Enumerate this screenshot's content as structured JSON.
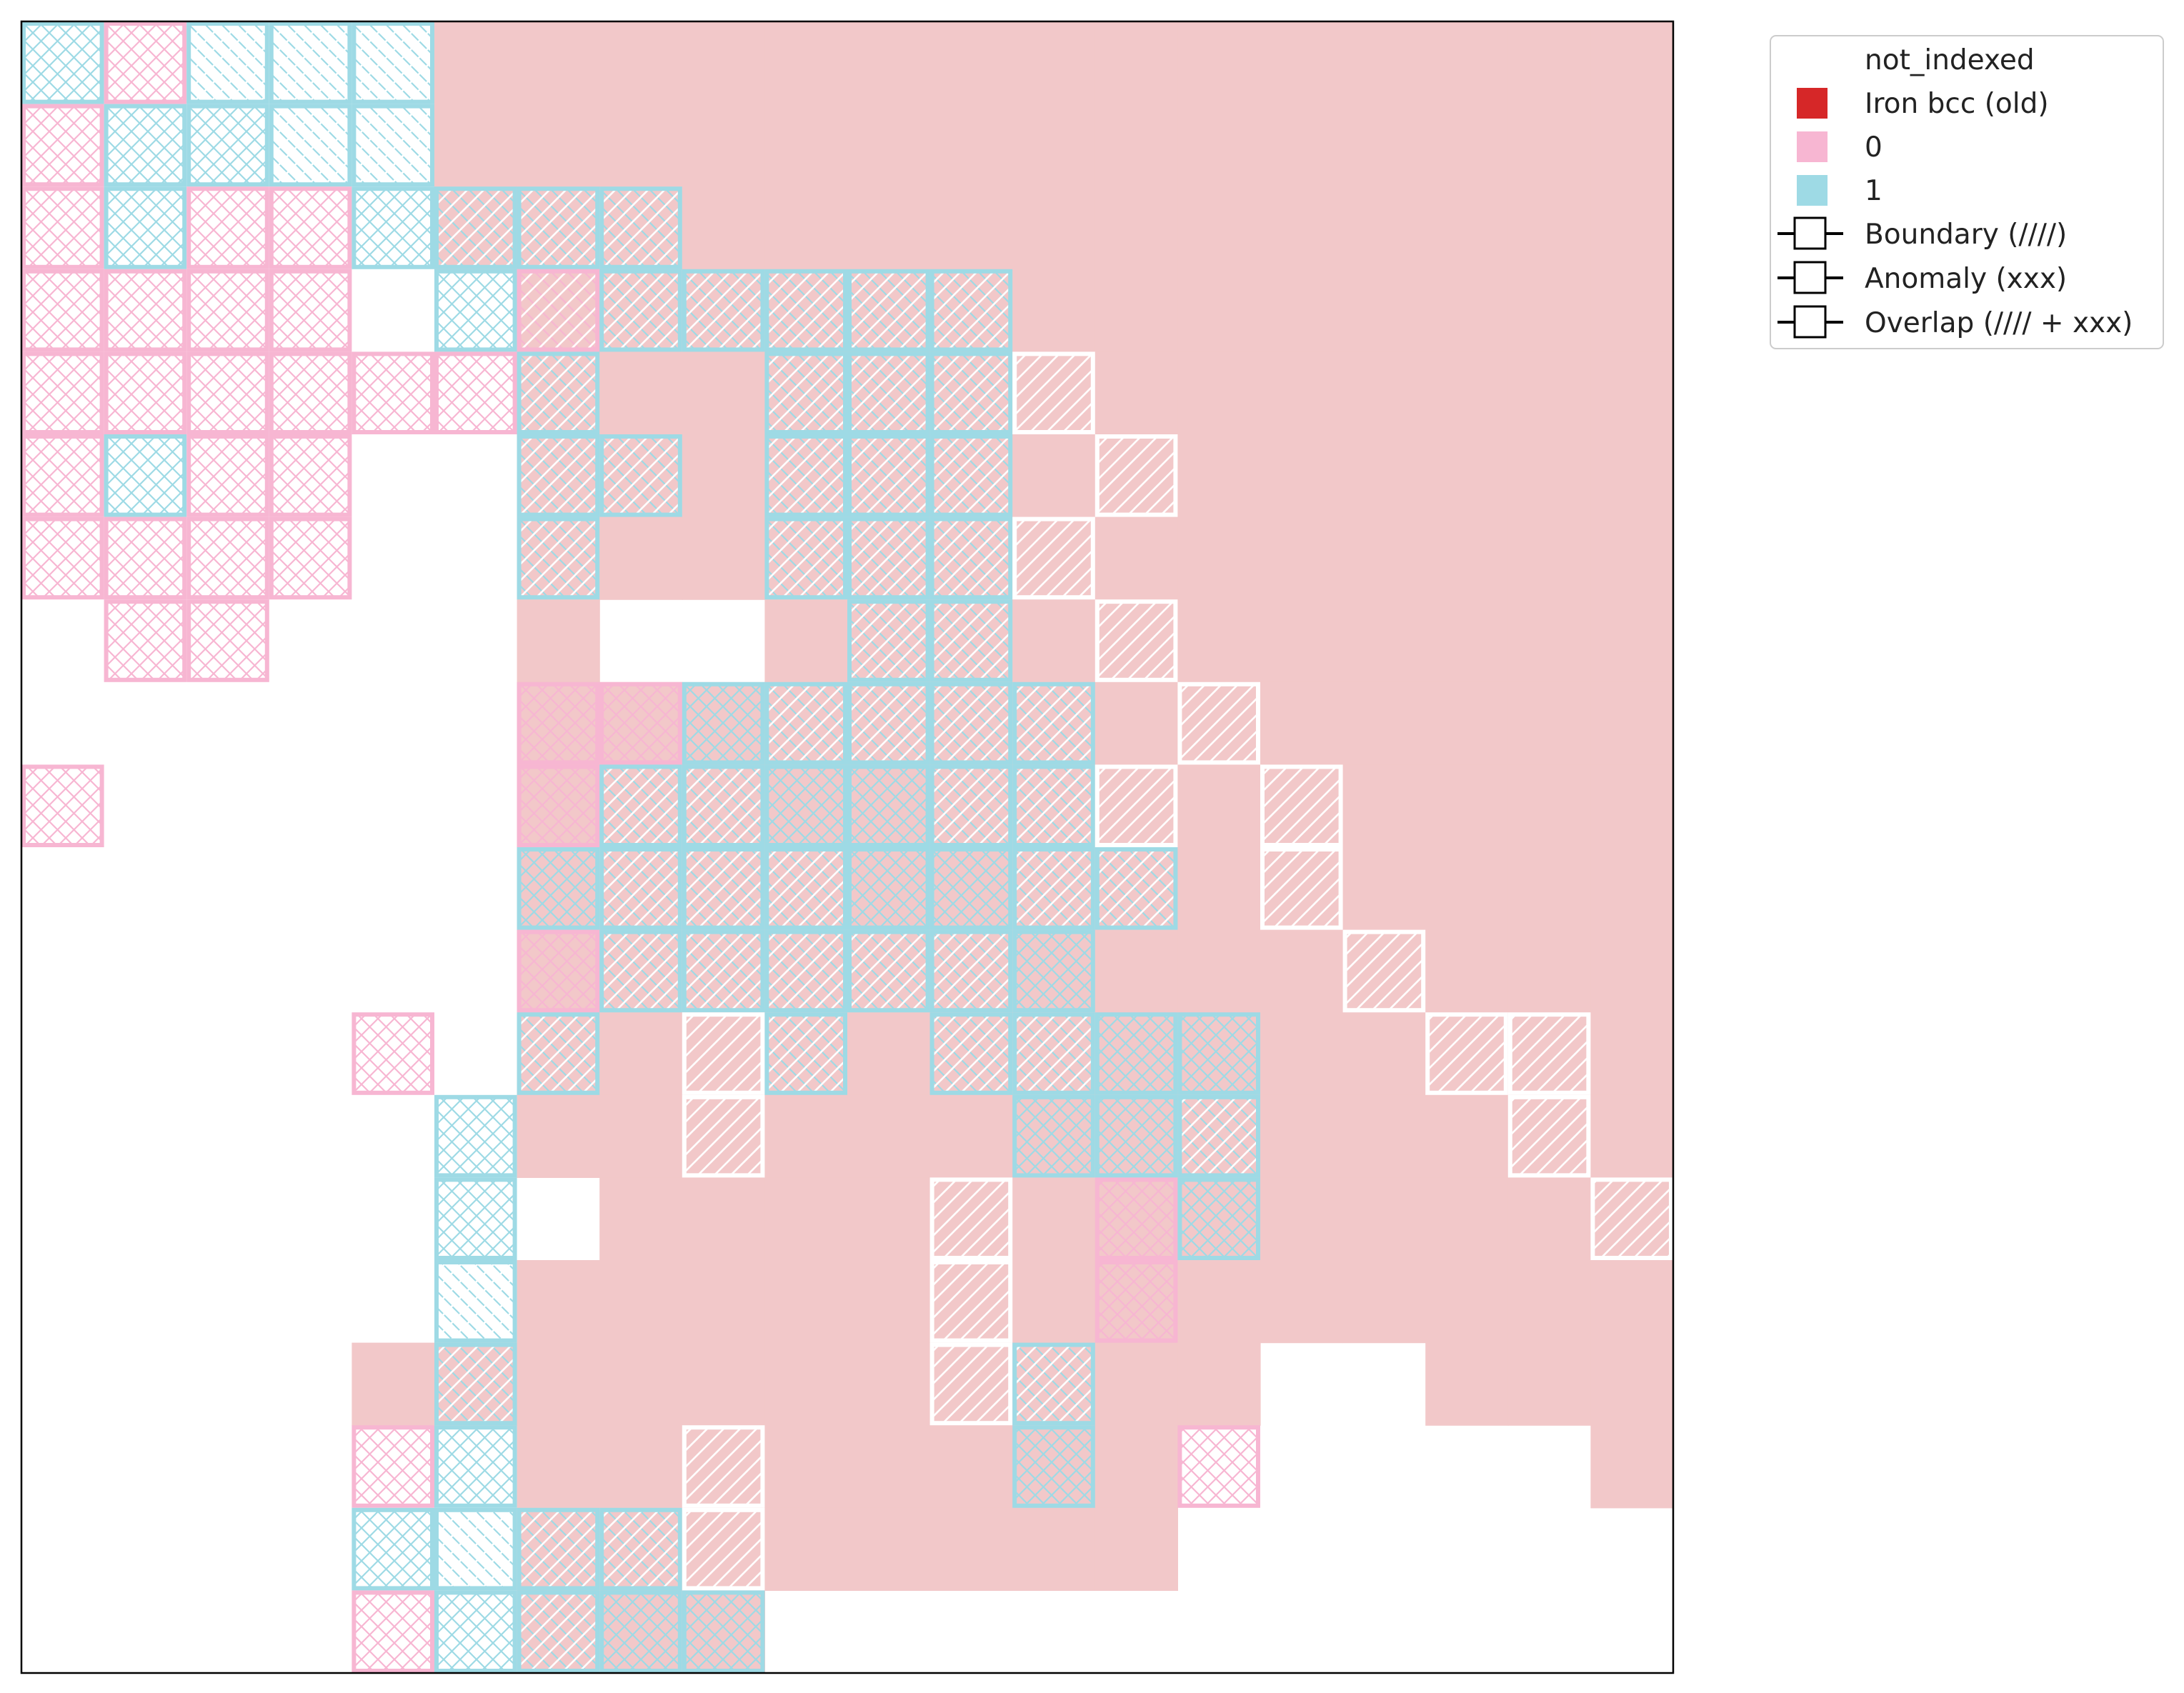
{
  "chart_data": {
    "type": "heatmap",
    "title": "",
    "xlabel": "",
    "ylabel": "",
    "grid_size": [
      20,
      20
    ],
    "axes_ticks": false,
    "colors": {
      "not_indexed": "#ffffff",
      "iron": "#f2c8c9",
      "iron_legend": "#d62728",
      "phase0": "#f7b6d2",
      "phase1": "#9edae5",
      "boundary_hatch": "#ffffff",
      "axis": "#000000"
    },
    "legend": {
      "placement": "outside-top-right",
      "entries": [
        {
          "label": "not_indexed",
          "kind": "patch",
          "color_key": "not_indexed"
        },
        {
          "label": "Iron bcc (old)",
          "kind": "patch",
          "color_key": "iron_legend"
        },
        {
          "label": "0",
          "kind": "patch",
          "color_key": "phase0"
        },
        {
          "label": "1",
          "kind": "patch",
          "color_key": "phase1"
        },
        {
          "label": "Boundary (////)",
          "kind": "marker"
        },
        {
          "label": "Anomaly (xxx)",
          "kind": "marker"
        },
        {
          "label": "Overlap (//// + xxx)",
          "kind": "marker"
        }
      ]
    },
    "iron_rows": [
      "00000111111111111111",
      "00000111111111111111",
      "00000111111111111111",
      "00000011111111111111",
      "00000011111111111111",
      "00000011111111111111",
      "00000011111111111111",
      "00000010011111111111",
      "00000011111111111111",
      "00000011111111111111",
      "00000011111111111111",
      "00000011111111111111",
      "00000011111111111111",
      "00000011111111111111",
      "00000001111111111111",
      "00000011111111111111",
      "00001111111111100111",
      "00000011111111000001",
      "00000011111111000000",
      "00000011100000000000"
    ],
    "cells": [
      {
        "r": 0,
        "c": 0,
        "p": "1",
        "m": "x"
      },
      {
        "r": 0,
        "c": 1,
        "p": "0",
        "m": "x"
      },
      {
        "r": 0,
        "c": 2,
        "p": "1",
        "m": "o"
      },
      {
        "r": 0,
        "c": 3,
        "p": "1",
        "m": "o"
      },
      {
        "r": 0,
        "c": 4,
        "p": "1",
        "m": "o"
      },
      {
        "r": 1,
        "c": 0,
        "p": "0",
        "m": "x"
      },
      {
        "r": 1,
        "c": 1,
        "p": "1",
        "m": "x"
      },
      {
        "r": 1,
        "c": 2,
        "p": "1",
        "m": "x"
      },
      {
        "r": 1,
        "c": 3,
        "p": "1",
        "m": "o"
      },
      {
        "r": 1,
        "c": 4,
        "p": "1",
        "m": "o"
      },
      {
        "r": 2,
        "c": 0,
        "p": "0",
        "m": "x"
      },
      {
        "r": 2,
        "c": 1,
        "p": "1",
        "m": "x"
      },
      {
        "r": 2,
        "c": 2,
        "p": "0",
        "m": "x"
      },
      {
        "r": 2,
        "c": 3,
        "p": "0",
        "m": "x"
      },
      {
        "r": 2,
        "c": 4,
        "p": "1",
        "m": "x"
      },
      {
        "r": 2,
        "c": 5,
        "p": "1",
        "m": "o"
      },
      {
        "r": 2,
        "c": 6,
        "p": "1",
        "m": "o"
      },
      {
        "r": 2,
        "c": 7,
        "p": "1",
        "m": "o"
      },
      {
        "r": 3,
        "c": 0,
        "p": "0",
        "m": "x"
      },
      {
        "r": 3,
        "c": 1,
        "p": "0",
        "m": "x"
      },
      {
        "r": 3,
        "c": 2,
        "p": "0",
        "m": "x"
      },
      {
        "r": 3,
        "c": 3,
        "p": "0",
        "m": "x"
      },
      {
        "r": 3,
        "c": 5,
        "p": "1",
        "m": "x"
      },
      {
        "r": 3,
        "c": 6,
        "p": "0",
        "m": "o"
      },
      {
        "r": 3,
        "c": 7,
        "p": "1",
        "m": "o"
      },
      {
        "r": 3,
        "c": 8,
        "p": "1",
        "m": "o"
      },
      {
        "r": 3,
        "c": 9,
        "p": "1",
        "m": "o"
      },
      {
        "r": 3,
        "c": 10,
        "p": "1",
        "m": "o"
      },
      {
        "r": 3,
        "c": 11,
        "p": "1",
        "m": "o"
      },
      {
        "r": 4,
        "c": 0,
        "p": "0",
        "m": "x"
      },
      {
        "r": 4,
        "c": 1,
        "p": "0",
        "m": "x"
      },
      {
        "r": 4,
        "c": 2,
        "p": "0",
        "m": "x"
      },
      {
        "r": 4,
        "c": 3,
        "p": "0",
        "m": "x"
      },
      {
        "r": 4,
        "c": 4,
        "p": "0",
        "m": "x"
      },
      {
        "r": 4,
        "c": 5,
        "p": "0",
        "m": "x"
      },
      {
        "r": 4,
        "c": 6,
        "p": "1",
        "m": "o"
      },
      {
        "r": 4,
        "c": 9,
        "p": "1",
        "m": "o"
      },
      {
        "r": 4,
        "c": 10,
        "p": "1",
        "m": "o"
      },
      {
        "r": 4,
        "c": 11,
        "p": "1",
        "m": "o"
      },
      {
        "r": 4,
        "c": 12,
        "p": "b",
        "m": "b"
      },
      {
        "r": 5,
        "c": 0,
        "p": "0",
        "m": "x"
      },
      {
        "r": 5,
        "c": 1,
        "p": "1",
        "m": "x"
      },
      {
        "r": 5,
        "c": 2,
        "p": "0",
        "m": "x"
      },
      {
        "r": 5,
        "c": 3,
        "p": "0",
        "m": "x"
      },
      {
        "r": 5,
        "c": 6,
        "p": "1",
        "m": "o"
      },
      {
        "r": 5,
        "c": 7,
        "p": "1",
        "m": "o"
      },
      {
        "r": 5,
        "c": 9,
        "p": "1",
        "m": "o"
      },
      {
        "r": 5,
        "c": 10,
        "p": "1",
        "m": "o"
      },
      {
        "r": 5,
        "c": 11,
        "p": "1",
        "m": "o"
      },
      {
        "r": 5,
        "c": 13,
        "p": "b",
        "m": "b"
      },
      {
        "r": 6,
        "c": 0,
        "p": "0",
        "m": "x"
      },
      {
        "r": 6,
        "c": 1,
        "p": "0",
        "m": "x"
      },
      {
        "r": 6,
        "c": 2,
        "p": "0",
        "m": "x"
      },
      {
        "r": 6,
        "c": 3,
        "p": "0",
        "m": "x"
      },
      {
        "r": 6,
        "c": 6,
        "p": "1",
        "m": "o"
      },
      {
        "r": 6,
        "c": 9,
        "p": "1",
        "m": "o"
      },
      {
        "r": 6,
        "c": 10,
        "p": "1",
        "m": "o"
      },
      {
        "r": 6,
        "c": 11,
        "p": "1",
        "m": "o"
      },
      {
        "r": 6,
        "c": 12,
        "p": "b",
        "m": "b"
      },
      {
        "r": 7,
        "c": 1,
        "p": "0",
        "m": "x"
      },
      {
        "r": 7,
        "c": 2,
        "p": "0",
        "m": "x"
      },
      {
        "r": 7,
        "c": 10,
        "p": "1",
        "m": "o"
      },
      {
        "r": 7,
        "c": 11,
        "p": "1",
        "m": "o"
      },
      {
        "r": 7,
        "c": 13,
        "p": "b",
        "m": "b"
      },
      {
        "r": 8,
        "c": 6,
        "p": "0",
        "m": "x"
      },
      {
        "r": 8,
        "c": 7,
        "p": "0",
        "m": "x"
      },
      {
        "r": 8,
        "c": 8,
        "p": "1",
        "m": "x"
      },
      {
        "r": 8,
        "c": 9,
        "p": "1",
        "m": "o"
      },
      {
        "r": 8,
        "c": 10,
        "p": "1",
        "m": "o"
      },
      {
        "r": 8,
        "c": 11,
        "p": "1",
        "m": "o"
      },
      {
        "r": 8,
        "c": 12,
        "p": "1",
        "m": "o"
      },
      {
        "r": 8,
        "c": 14,
        "p": "b",
        "m": "b"
      },
      {
        "r": 9,
        "c": 0,
        "p": "0",
        "m": "x"
      },
      {
        "r": 9,
        "c": 6,
        "p": "0",
        "m": "x"
      },
      {
        "r": 9,
        "c": 7,
        "p": "1",
        "m": "o"
      },
      {
        "r": 9,
        "c": 8,
        "p": "1",
        "m": "o"
      },
      {
        "r": 9,
        "c": 9,
        "p": "1",
        "m": "x"
      },
      {
        "r": 9,
        "c": 10,
        "p": "1",
        "m": "x"
      },
      {
        "r": 9,
        "c": 11,
        "p": "1",
        "m": "o"
      },
      {
        "r": 9,
        "c": 12,
        "p": "1",
        "m": "o"
      },
      {
        "r": 9,
        "c": 13,
        "p": "b",
        "m": "b"
      },
      {
        "r": 9,
        "c": 15,
        "p": "b",
        "m": "b"
      },
      {
        "r": 10,
        "c": 6,
        "p": "1",
        "m": "x"
      },
      {
        "r": 10,
        "c": 7,
        "p": "1",
        "m": "o"
      },
      {
        "r": 10,
        "c": 8,
        "p": "1",
        "m": "o"
      },
      {
        "r": 10,
        "c": 9,
        "p": "1",
        "m": "o"
      },
      {
        "r": 10,
        "c": 10,
        "p": "1",
        "m": "x"
      },
      {
        "r": 10,
        "c": 11,
        "p": "1",
        "m": "x"
      },
      {
        "r": 10,
        "c": 12,
        "p": "1",
        "m": "o"
      },
      {
        "r": 10,
        "c": 13,
        "p": "1",
        "m": "o"
      },
      {
        "r": 10,
        "c": 15,
        "p": "b",
        "m": "b"
      },
      {
        "r": 11,
        "c": 6,
        "p": "0",
        "m": "x"
      },
      {
        "r": 11,
        "c": 7,
        "p": "1",
        "m": "o"
      },
      {
        "r": 11,
        "c": 8,
        "p": "1",
        "m": "o"
      },
      {
        "r": 11,
        "c": 9,
        "p": "1",
        "m": "o"
      },
      {
        "r": 11,
        "c": 10,
        "p": "1",
        "m": "o"
      },
      {
        "r": 11,
        "c": 11,
        "p": "1",
        "m": "o"
      },
      {
        "r": 11,
        "c": 12,
        "p": "1",
        "m": "x"
      },
      {
        "r": 11,
        "c": 16,
        "p": "b",
        "m": "b"
      },
      {
        "r": 12,
        "c": 4,
        "p": "0",
        "m": "x"
      },
      {
        "r": 12,
        "c": 6,
        "p": "1",
        "m": "o"
      },
      {
        "r": 12,
        "c": 8,
        "p": "b",
        "m": "b"
      },
      {
        "r": 12,
        "c": 9,
        "p": "1",
        "m": "o"
      },
      {
        "r": 12,
        "c": 11,
        "p": "1",
        "m": "o"
      },
      {
        "r": 12,
        "c": 12,
        "p": "1",
        "m": "o"
      },
      {
        "r": 12,
        "c": 13,
        "p": "1",
        "m": "x"
      },
      {
        "r": 12,
        "c": 14,
        "p": "1",
        "m": "x"
      },
      {
        "r": 12,
        "c": 17,
        "p": "b",
        "m": "b"
      },
      {
        "r": 12,
        "c": 18,
        "p": "b",
        "m": "b"
      },
      {
        "r": 13,
        "c": 5,
        "p": "1",
        "m": "x"
      },
      {
        "r": 13,
        "c": 8,
        "p": "b",
        "m": "b"
      },
      {
        "r": 13,
        "c": 12,
        "p": "1",
        "m": "x"
      },
      {
        "r": 13,
        "c": 13,
        "p": "1",
        "m": "x"
      },
      {
        "r": 13,
        "c": 14,
        "p": "1",
        "m": "o"
      },
      {
        "r": 13,
        "c": 18,
        "p": "b",
        "m": "b"
      },
      {
        "r": 14,
        "c": 5,
        "p": "1",
        "m": "x"
      },
      {
        "r": 14,
        "c": 11,
        "p": "b",
        "m": "b"
      },
      {
        "r": 14,
        "c": 13,
        "p": "0",
        "m": "x"
      },
      {
        "r": 14,
        "c": 14,
        "p": "1",
        "m": "x"
      },
      {
        "r": 14,
        "c": 19,
        "p": "b",
        "m": "b"
      },
      {
        "r": 15,
        "c": 5,
        "p": "1",
        "m": "o"
      },
      {
        "r": 15,
        "c": 11,
        "p": "b",
        "m": "b"
      },
      {
        "r": 15,
        "c": 13,
        "p": "0",
        "m": "x"
      },
      {
        "r": 16,
        "c": 5,
        "p": "1",
        "m": "o"
      },
      {
        "r": 16,
        "c": 11,
        "p": "b",
        "m": "b"
      },
      {
        "r": 16,
        "c": 12,
        "p": "1",
        "m": "o"
      },
      {
        "r": 17,
        "c": 4,
        "p": "0",
        "m": "x"
      },
      {
        "r": 17,
        "c": 5,
        "p": "1",
        "m": "x"
      },
      {
        "r": 17,
        "c": 8,
        "p": "b",
        "m": "b"
      },
      {
        "r": 17,
        "c": 12,
        "p": "1",
        "m": "x"
      },
      {
        "r": 17,
        "c": 14,
        "p": "0",
        "m": "x"
      },
      {
        "r": 18,
        "c": 4,
        "p": "1",
        "m": "x"
      },
      {
        "r": 18,
        "c": 5,
        "p": "1",
        "m": "o"
      },
      {
        "r": 18,
        "c": 6,
        "p": "1",
        "m": "o"
      },
      {
        "r": 18,
        "c": 7,
        "p": "1",
        "m": "o"
      },
      {
        "r": 18,
        "c": 8,
        "p": "b",
        "m": "b"
      },
      {
        "r": 19,
        "c": 4,
        "p": "0",
        "m": "x"
      },
      {
        "r": 19,
        "c": 5,
        "p": "1",
        "m": "x"
      },
      {
        "r": 19,
        "c": 6,
        "p": "1",
        "m": "o"
      },
      {
        "r": 19,
        "c": 7,
        "p": "1",
        "m": "x"
      },
      {
        "r": 19,
        "c": 8,
        "p": "1",
        "m": "x"
      }
    ]
  }
}
